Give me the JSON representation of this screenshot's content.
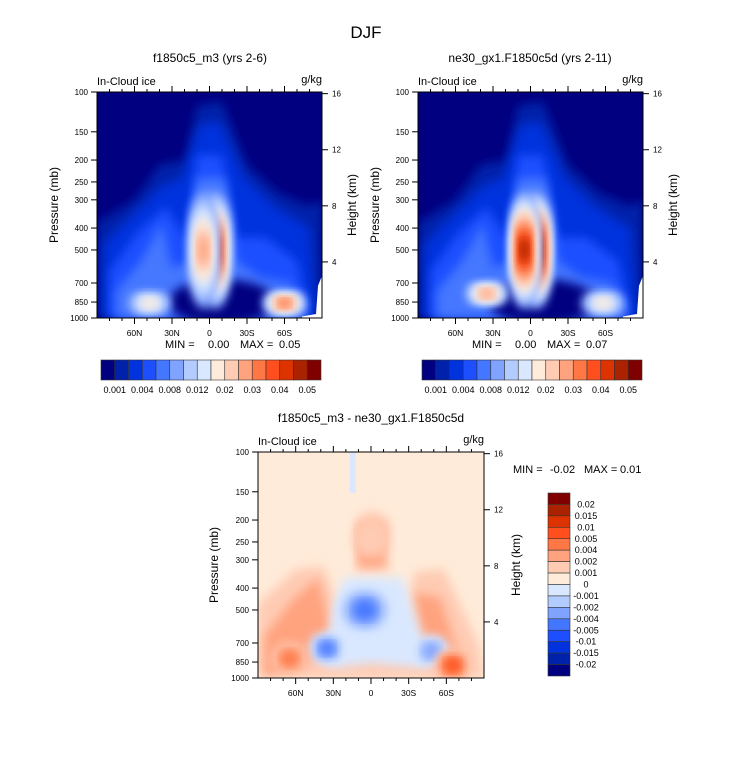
{
  "chart_data": {
    "type": "heatmap",
    "figure_title": "DJF",
    "panels": [
      {
        "id": "model1",
        "title": "f1850c5_m3 (yrs 2-6)",
        "left_label": "In-Cloud ice",
        "right_label": "g/kg",
        "ylabel": "Pressure (mb)",
        "y2label": "Height (km)",
        "xticks": [
          "60N",
          "30N",
          "0",
          "30S",
          "60S"
        ],
        "xtick_lat": [
          60,
          30,
          0,
          -30,
          -60
        ],
        "xlim": [
          90,
          -90
        ],
        "yticks": [
          100,
          150,
          200,
          250,
          300,
          400,
          500,
          700,
          850,
          1000
        ],
        "ylim": [
          100,
          1000
        ],
        "y2ticks": [
          4,
          8,
          12,
          16
        ],
        "min_label": "MIN =",
        "min_value": "0.00",
        "max_label": "MAX =",
        "max_value": "0.05",
        "peaks": [
          {
            "lat": -5,
            "p": 500,
            "value": 0.045
          },
          {
            "lat": 5,
            "p": 500,
            "value": 0.035
          },
          {
            "lat": 48,
            "p": 860,
            "value": 0.03
          },
          {
            "lat": -60,
            "p": 860,
            "value": 0.04
          }
        ]
      },
      {
        "id": "model2",
        "title": "ne30_gx1.F1850c5d (yrs 2-11)",
        "left_label": "In-Cloud ice",
        "right_label": "g/kg",
        "ylabel": "Pressure (mb)",
        "y2label": "Height (km)",
        "xticks": [
          "60N",
          "30N",
          "0",
          "30S",
          "60S"
        ],
        "xtick_lat": [
          60,
          30,
          0,
          -30,
          -60
        ],
        "xlim": [
          90,
          -90
        ],
        "yticks": [
          100,
          150,
          200,
          250,
          300,
          400,
          500,
          700,
          850,
          1000
        ],
        "ylim": [
          100,
          1000
        ],
        "y2ticks": [
          4,
          8,
          12,
          16
        ],
        "min_label": "MIN =",
        "min_value": "0.00",
        "max_label": "MAX =",
        "max_value": "0.07",
        "peaks": [
          {
            "lat": -5,
            "p": 500,
            "value": 0.06
          },
          {
            "lat": 5,
            "p": 500,
            "value": 0.05
          },
          {
            "lat": 35,
            "p": 780,
            "value": 0.035
          },
          {
            "lat": -58,
            "p": 860,
            "value": 0.03
          }
        ]
      },
      {
        "id": "difference",
        "title": "f1850c5_m3 - ne30_gx1.F1850c5d",
        "left_label": "In-Cloud ice",
        "right_label": "g/kg",
        "ylabel": "Pressure (mb)",
        "y2label": "Height (km)",
        "xticks": [
          "60N",
          "30N",
          "0",
          "30S",
          "60S"
        ],
        "xtick_lat": [
          60,
          30,
          0,
          -30,
          -60
        ],
        "xlim": [
          90,
          -90
        ],
        "yticks": [
          100,
          150,
          200,
          250,
          300,
          400,
          500,
          700,
          850,
          1000
        ],
        "ylim": [
          100,
          1000
        ],
        "y2ticks": [
          4,
          8,
          12,
          16
        ],
        "min_label": "MIN =",
        "min_value": "-0.02",
        "max_label": "MAX =",
        "max_value": "0.01",
        "peaks": [
          {
            "lat": 5,
            "p": 500,
            "value": -0.012
          },
          {
            "lat": 35,
            "p": 740,
            "value": -0.01
          },
          {
            "lat": -48,
            "p": 760,
            "value": -0.008
          },
          {
            "lat": 65,
            "p": 820,
            "value": 0.008
          },
          {
            "lat": -65,
            "p": 880,
            "value": 0.01
          },
          {
            "lat": 0,
            "p": 240,
            "value": 0.004
          }
        ]
      }
    ],
    "colorbars": [
      {
        "id": "abs",
        "orientation": "horizontal",
        "labels": [
          "0.001",
          "0.004",
          "0.008",
          "0.012",
          "0.02",
          "0.03",
          "0.04",
          "0.05"
        ],
        "colors": [
          "#000080",
          "#0022aa",
          "#0033dd",
          "#1e4fff",
          "#4477ff",
          "#7fa3ff",
          "#b3ccff",
          "#d9e8ff",
          "#ffebd9",
          "#ffcbb3",
          "#ffa37f",
          "#ff7744",
          "#ff4f1e",
          "#dd3300",
          "#aa2200",
          "#800000"
        ]
      },
      {
        "id": "diff",
        "orientation": "vertical",
        "labels": [
          "0.02",
          "0.015",
          "0.01",
          "0.005",
          "0.004",
          "0.002",
          "0.001",
          "0",
          "-0.001",
          "-0.002",
          "-0.004",
          "-0.005",
          "-0.01",
          "-0.015",
          "-0.02"
        ],
        "colors": [
          "#800000",
          "#aa2200",
          "#dd3300",
          "#ff4f1e",
          "#ff7744",
          "#ffa37f",
          "#ffcbb3",
          "#ffebd9",
          "#d9e8ff",
          "#b3ccff",
          "#7fa3ff",
          "#4477ff",
          "#1e4fff",
          "#0033dd",
          "#0022aa",
          "#000080"
        ]
      }
    ]
  }
}
